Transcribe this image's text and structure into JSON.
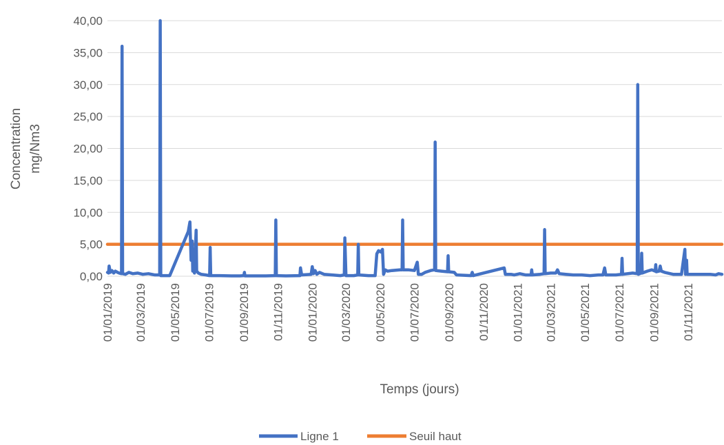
{
  "chart_data": {
    "type": "line",
    "xlabel": "Temps (jours)",
    "ylabel_line1": "Concentration",
    "ylabel_line2": "mg/Nm3",
    "ylim": [
      0,
      40
    ],
    "xlim": [
      "2019-01-01",
      "2021-12-31"
    ],
    "grid": true,
    "legend_position": "bottom-center",
    "y_ticks": [
      {
        "value": 0,
        "label": "0,00"
      },
      {
        "value": 5,
        "label": "5,00"
      },
      {
        "value": 10,
        "label": "10,00"
      },
      {
        "value": 15,
        "label": "15,00"
      },
      {
        "value": 20,
        "label": "20,00"
      },
      {
        "value": 25,
        "label": "25,00"
      },
      {
        "value": 30,
        "label": "30,00"
      },
      {
        "value": 35,
        "label": "35,00"
      },
      {
        "value": 40,
        "label": "40,00"
      }
    ],
    "x_ticks": [
      {
        "date": "2019-01-01",
        "label": "01/01/2019"
      },
      {
        "date": "2019-03-01",
        "label": "01/03/2019"
      },
      {
        "date": "2019-05-01",
        "label": "01/05/2019"
      },
      {
        "date": "2019-07-01",
        "label": "01/07/2019"
      },
      {
        "date": "2019-09-01",
        "label": "01/09/2019"
      },
      {
        "date": "2019-11-01",
        "label": "01/11/2019"
      },
      {
        "date": "2020-01-01",
        "label": "01/01/2020"
      },
      {
        "date": "2020-03-01",
        "label": "01/03/2020"
      },
      {
        "date": "2020-05-01",
        "label": "01/05/2020"
      },
      {
        "date": "2020-07-01",
        "label": "01/07/2020"
      },
      {
        "date": "2020-09-01",
        "label": "01/09/2020"
      },
      {
        "date": "2020-11-01",
        "label": "01/11/2020"
      },
      {
        "date": "2021-01-01",
        "label": "01/01/2021"
      },
      {
        "date": "2021-03-01",
        "label": "01/03/2021"
      },
      {
        "date": "2021-05-01",
        "label": "01/05/2021"
      },
      {
        "date": "2021-07-01",
        "label": "01/07/2021"
      },
      {
        "date": "2021-09-01",
        "label": "01/09/2021"
      },
      {
        "date": "2021-11-01",
        "label": "01/11/2021"
      }
    ],
    "series": [
      {
        "name": "Ligne 1",
        "color": "#4472C4",
        "points": [
          [
            "2019-01-01",
            0.6
          ],
          [
            "2019-01-03",
            0.5
          ],
          [
            "2019-01-04",
            1.6
          ],
          [
            "2019-01-06",
            0.6
          ],
          [
            "2019-01-09",
            0.9
          ],
          [
            "2019-01-12",
            0.5
          ],
          [
            "2019-01-15",
            0.8
          ],
          [
            "2019-01-19",
            0.6
          ],
          [
            "2019-01-22",
            0.5
          ],
          [
            "2019-01-26",
            0.4
          ],
          [
            "2019-01-27",
            36.0
          ],
          [
            "2019-01-28",
            0.4
          ],
          [
            "2019-02-02",
            0.3
          ],
          [
            "2019-02-08",
            0.6
          ],
          [
            "2019-02-15",
            0.4
          ],
          [
            "2019-02-24",
            0.5
          ],
          [
            "2019-03-05",
            0.3
          ],
          [
            "2019-03-15",
            0.4
          ],
          [
            "2019-03-26",
            0.2
          ],
          [
            "2019-04-04",
            0.2
          ],
          [
            "2019-04-05",
            40.0
          ],
          [
            "2019-04-06",
            0.1
          ],
          [
            "2019-04-12",
            0.1
          ],
          [
            "2019-04-22",
            0.1
          ],
          [
            "2019-05-25",
            7.0
          ],
          [
            "2019-05-28",
            8.5
          ],
          [
            "2019-05-30",
            2.5
          ],
          [
            "2019-06-01",
            5.5
          ],
          [
            "2019-06-02",
            0.8
          ],
          [
            "2019-06-04",
            4.0
          ],
          [
            "2019-06-05",
            0.5
          ],
          [
            "2019-06-08",
            7.2
          ],
          [
            "2019-06-09",
            0.8
          ],
          [
            "2019-06-12",
            0.5
          ],
          [
            "2019-06-17",
            0.3
          ],
          [
            "2019-06-25",
            0.2
          ],
          [
            "2019-07-02",
            0.1
          ],
          [
            "2019-07-03",
            4.5
          ],
          [
            "2019-07-04",
            0.1
          ],
          [
            "2019-07-20",
            0.1
          ],
          [
            "2019-08-10",
            0.05
          ],
          [
            "2019-08-25",
            0.05
          ],
          [
            "2019-09-01",
            0.1
          ],
          [
            "2019-09-02",
            0.6
          ],
          [
            "2019-09-03",
            0.05
          ],
          [
            "2019-09-20",
            0.05
          ],
          [
            "2019-10-10",
            0.05
          ],
          [
            "2019-10-27",
            0.1
          ],
          [
            "2019-10-28",
            8.8
          ],
          [
            "2019-10-29",
            0.1
          ],
          [
            "2019-11-15",
            0.05
          ],
          [
            "2019-12-10",
            0.1
          ],
          [
            "2019-12-11",
            1.3
          ],
          [
            "2019-12-13",
            0.2
          ],
          [
            "2019-12-30",
            0.3
          ],
          [
            "2020-01-01",
            1.5
          ],
          [
            "2020-01-03",
            0.4
          ],
          [
            "2020-01-06",
            0.9
          ],
          [
            "2020-01-09",
            0.3
          ],
          [
            "2020-01-14",
            0.6
          ],
          [
            "2020-01-22",
            0.3
          ],
          [
            "2020-02-05",
            0.2
          ],
          [
            "2020-02-20",
            0.1
          ],
          [
            "2020-02-27",
            0.2
          ],
          [
            "2020-02-28",
            6.0
          ],
          [
            "2020-03-01",
            0.1
          ],
          [
            "2020-03-15",
            0.1
          ],
          [
            "2020-03-22",
            0.2
          ],
          [
            "2020-03-23",
            5.0
          ],
          [
            "2020-03-24",
            0.2
          ],
          [
            "2020-04-10",
            0.1
          ],
          [
            "2020-04-22",
            0.1
          ],
          [
            "2020-04-25",
            3.5
          ],
          [
            "2020-04-28",
            4.0
          ],
          [
            "2020-05-02",
            3.8
          ],
          [
            "2020-05-05",
            4.2
          ],
          [
            "2020-05-07",
            0.3
          ],
          [
            "2020-05-10",
            1.0
          ],
          [
            "2020-05-14",
            0.8
          ],
          [
            "2020-05-22",
            0.9
          ],
          [
            "2020-06-05",
            1.0
          ],
          [
            "2020-06-09",
            1.0
          ],
          [
            "2020-06-10",
            8.8
          ],
          [
            "2020-06-11",
            1.0
          ],
          [
            "2020-06-20",
            1.0
          ],
          [
            "2020-07-01",
            0.9
          ],
          [
            "2020-07-06",
            2.2
          ],
          [
            "2020-07-08",
            0.3
          ],
          [
            "2020-07-14",
            0.3
          ],
          [
            "2020-07-20",
            0.6
          ],
          [
            "2020-07-30",
            0.9
          ],
          [
            "2020-08-06",
            1.0
          ],
          [
            "2020-08-07",
            21.0
          ],
          [
            "2020-08-08",
            0.9
          ],
          [
            "2020-08-18",
            0.8
          ],
          [
            "2020-08-29",
            0.7
          ],
          [
            "2020-08-30",
            3.2
          ],
          [
            "2020-08-31",
            0.7
          ],
          [
            "2020-09-10",
            0.6
          ],
          [
            "2020-09-14",
            0.2
          ],
          [
            "2020-10-10",
            0.1
          ],
          [
            "2020-10-12",
            0.6
          ],
          [
            "2020-10-14",
            0.1
          ],
          [
            "2020-12-08",
            1.3
          ],
          [
            "2020-12-10",
            0.3
          ],
          [
            "2020-12-20",
            0.3
          ],
          [
            "2020-12-26",
            0.2
          ],
          [
            "2021-01-05",
            0.4
          ],
          [
            "2021-01-15",
            0.2
          ],
          [
            "2021-01-25",
            0.2
          ],
          [
            "2021-01-26",
            1.0
          ],
          [
            "2021-01-27",
            0.2
          ],
          [
            "2021-02-10",
            0.3
          ],
          [
            "2021-02-17",
            0.4
          ],
          [
            "2021-02-18",
            7.3
          ],
          [
            "2021-02-19",
            0.4
          ],
          [
            "2021-03-01",
            0.5
          ],
          [
            "2021-03-10",
            0.5
          ],
          [
            "2021-03-13",
            1.0
          ],
          [
            "2021-03-16",
            0.4
          ],
          [
            "2021-03-28",
            0.3
          ],
          [
            "2021-04-10",
            0.2
          ],
          [
            "2021-04-25",
            0.2
          ],
          [
            "2021-05-10",
            0.1
          ],
          [
            "2021-05-25",
            0.2
          ],
          [
            "2021-06-02",
            0.2
          ],
          [
            "2021-06-05",
            1.3
          ],
          [
            "2021-06-07",
            0.2
          ],
          [
            "2021-06-25",
            0.2
          ],
          [
            "2021-07-05",
            0.3
          ],
          [
            "2021-07-06",
            2.8
          ],
          [
            "2021-07-07",
            0.3
          ],
          [
            "2021-07-25",
            0.5
          ],
          [
            "2021-08-02",
            0.4
          ],
          [
            "2021-08-03",
            30.0
          ],
          [
            "2021-08-04",
            0.3
          ],
          [
            "2021-08-09",
            0.5
          ],
          [
            "2021-08-10",
            3.6
          ],
          [
            "2021-08-11",
            0.5
          ],
          [
            "2021-08-20",
            0.8
          ],
          [
            "2021-08-28",
            1.0
          ],
          [
            "2021-09-03",
            0.8
          ],
          [
            "2021-09-04",
            1.8
          ],
          [
            "2021-09-05",
            0.7
          ],
          [
            "2021-09-10",
            0.8
          ],
          [
            "2021-09-12",
            1.6
          ],
          [
            "2021-09-14",
            0.8
          ],
          [
            "2021-09-20",
            0.6
          ],
          [
            "2021-10-05",
            0.3
          ],
          [
            "2021-10-20",
            0.3
          ],
          [
            "2021-10-26",
            4.2
          ],
          [
            "2021-10-27",
            0.3
          ],
          [
            "2021-10-29",
            2.5
          ],
          [
            "2021-10-30",
            0.3
          ],
          [
            "2021-11-10",
            0.3
          ],
          [
            "2021-11-25",
            0.3
          ],
          [
            "2021-12-10",
            0.3
          ],
          [
            "2021-12-20",
            0.2
          ],
          [
            "2021-12-25",
            0.4
          ],
          [
            "2021-12-31",
            0.3
          ]
        ]
      },
      {
        "name": "Seuil haut",
        "color": "#ED7D31",
        "points": [
          [
            "2019-01-01",
            5.0
          ],
          [
            "2021-12-31",
            5.0
          ]
        ]
      }
    ]
  }
}
